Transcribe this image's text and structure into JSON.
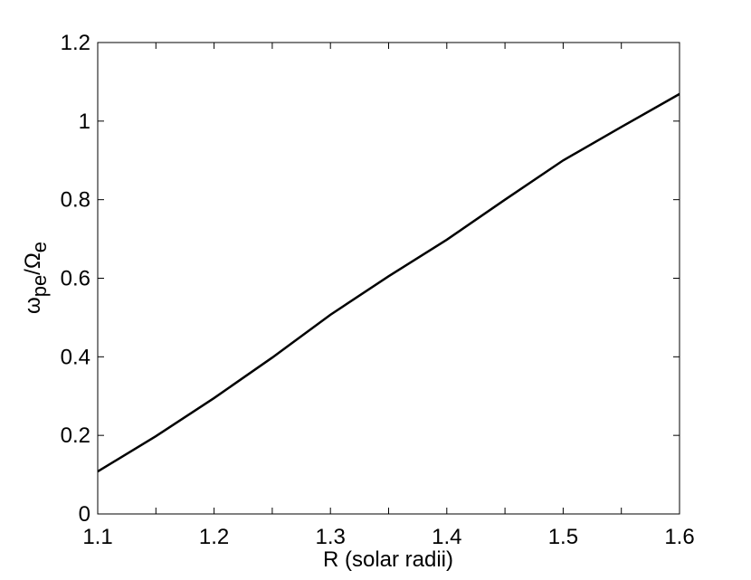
{
  "chart_data": {
    "type": "line",
    "xlabel": "R (solar radii)",
    "ylabel": [
      {
        "text": "ω"
      },
      {
        "text": "pe",
        "sub": true
      },
      {
        "text": "/Ω"
      },
      {
        "text": "e",
        "sub": true
      }
    ],
    "x": [
      1.1,
      1.15,
      1.2,
      1.25,
      1.3,
      1.35,
      1.4,
      1.45,
      1.5,
      1.55,
      1.6
    ],
    "series": [
      {
        "color": "#000000",
        "values": [
          0.108,
          0.198,
          0.295,
          0.398,
          0.507,
          0.605,
          0.698,
          0.8,
          0.9,
          0.985,
          1.069
        ]
      }
    ],
    "xlim": [
      1.1,
      1.6
    ],
    "ylim": [
      0,
      1.2
    ],
    "xticks": [
      1.1,
      1.2,
      1.3,
      1.4,
      1.5,
      1.6
    ],
    "xminorticks": [
      1.15,
      1.25,
      1.35,
      1.45,
      1.55
    ],
    "yticks": [
      0,
      0.2,
      0.4,
      0.6,
      0.8,
      1,
      1.2
    ],
    "grid": false
  }
}
